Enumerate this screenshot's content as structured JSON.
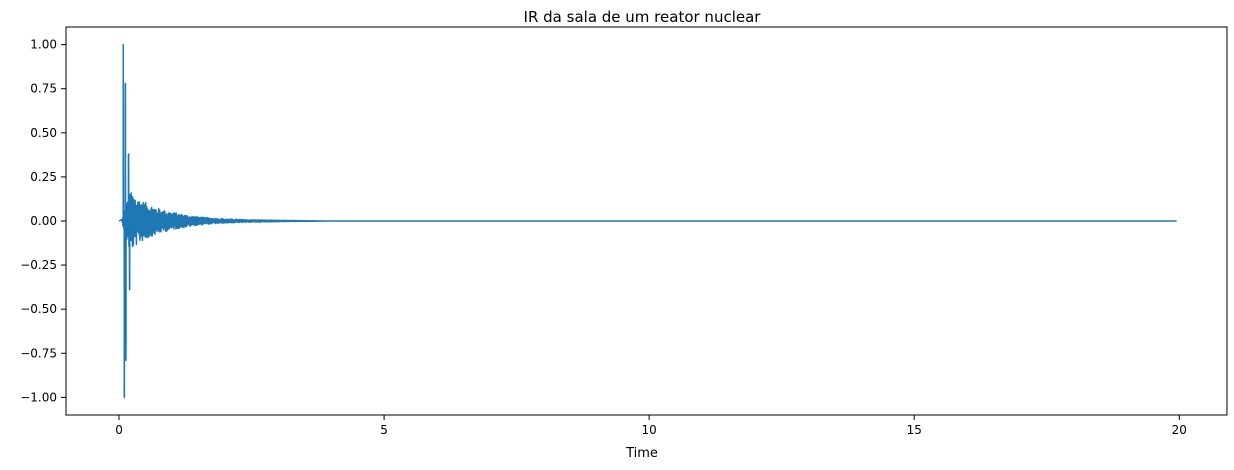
{
  "chart_data": {
    "type": "line",
    "title": "IR da sala de um reator nuclear",
    "xlabel": "Time",
    "ylabel": "",
    "xlim": [
      -1.0,
      20.9
    ],
    "ylim": [
      -1.1,
      1.1
    ],
    "x_ticks": [
      0,
      5,
      10,
      15,
      20
    ],
    "x_tick_labels": [
      "0",
      "5",
      "10",
      "15",
      "20"
    ],
    "y_ticks": [
      1.0,
      0.75,
      0.5,
      0.25,
      0.0,
      -0.25,
      -0.5,
      -0.75,
      -1.0
    ],
    "y_tick_labels": [
      "1.00",
      "0.75",
      "0.50",
      "0.25",
      "0.00",
      "−0.25",
      "−0.50",
      "−0.75",
      "−1.00"
    ],
    "grid": false,
    "line_color": "#1f77b4",
    "series": [
      {
        "peaks": [
          {
            "x": 0.08,
            "y": 1.0
          },
          {
            "x": 0.1,
            "y": -1.0
          },
          {
            "x": 0.12,
            "y": 0.78
          },
          {
            "x": 0.13,
            "y": -0.79
          },
          {
            "x": 0.18,
            "y": 0.38
          },
          {
            "x": 0.2,
            "y": -0.39
          }
        ],
        "envelope": [
          {
            "x": 0.05,
            "y": 0.0
          },
          {
            "x": 0.2,
            "y": 0.17
          },
          {
            "x": 0.4,
            "y": 0.12
          },
          {
            "x": 0.6,
            "y": 0.09
          },
          {
            "x": 0.8,
            "y": 0.065
          },
          {
            "x": 1.0,
            "y": 0.05
          },
          {
            "x": 1.3,
            "y": 0.032
          },
          {
            "x": 1.6,
            "y": 0.02
          },
          {
            "x": 2.0,
            "y": 0.012
          },
          {
            "x": 2.5,
            "y": 0.007
          },
          {
            "x": 3.0,
            "y": 0.004
          },
          {
            "x": 3.5,
            "y": 0.002
          },
          {
            "x": 4.0,
            "y": 0.0
          }
        ],
        "x_end": 19.95
      }
    ]
  }
}
